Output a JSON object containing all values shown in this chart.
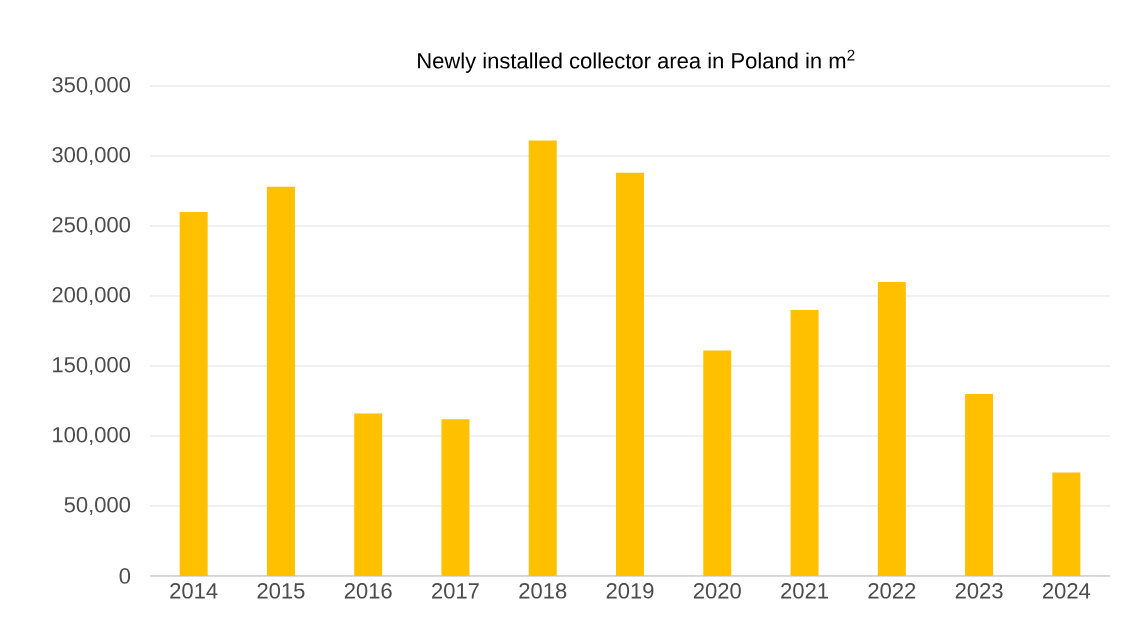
{
  "chart_data": {
    "type": "bar",
    "title": "Newly installed collector area in Poland in m$^{2}$",
    "categories": [
      "2014",
      "2015",
      "2016",
      "2017",
      "2018",
      "2019",
      "2020",
      "2021",
      "2022",
      "2023",
      "2024"
    ],
    "values": [
      260000,
      278000,
      116000,
      112000,
      311000,
      288000,
      161000,
      190000,
      210000,
      130000,
      74000
    ],
    "color": "#ffc000",
    "ylim": [
      0,
      350000
    ],
    "yticks": [
      0,
      {
        "value": 50000,
        "label": "50,000"
      },
      {
        "value": 100000,
        "label": "100,000"
      },
      {
        "value": 150000,
        "label": "150,000"
      },
      {
        "value": 200000,
        "label": "200,000"
      },
      {
        "value": 250000,
        "label": "250,000"
      },
      {
        "value": 300000,
        "label": "300,000"
      },
      {
        "value": 350000,
        "label": "350,000"
      }
    ],
    "grid": "y"
  }
}
